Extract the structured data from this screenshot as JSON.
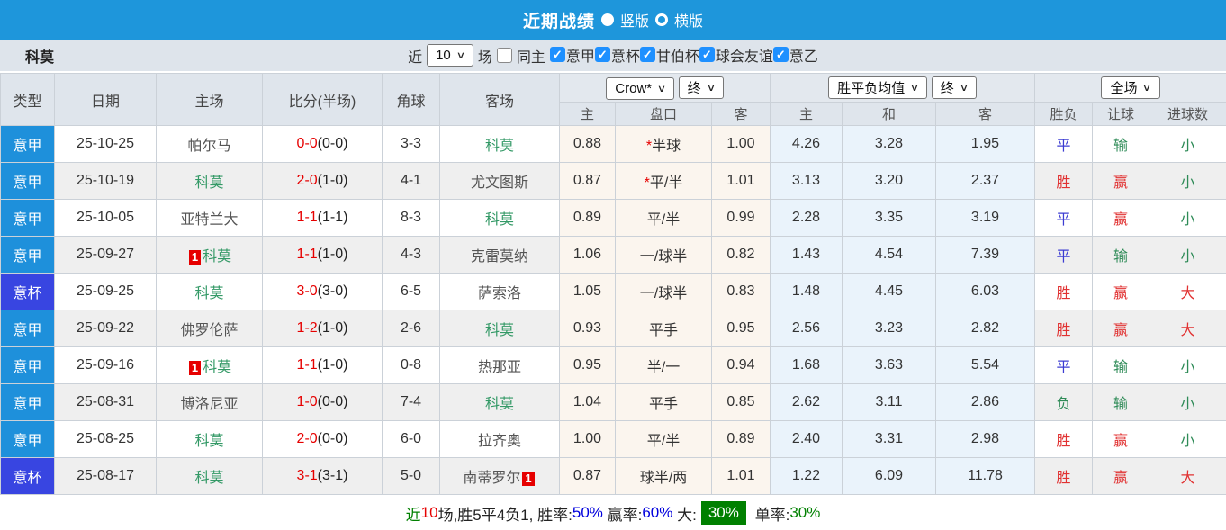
{
  "colors": {
    "bar_blue": "#1E96DB",
    "serie_a": "#1E90DB",
    "cup": "#3845E1",
    "red": "#E13232",
    "blue": "#3C3CD2",
    "green": "#2E8B57",
    "team_green": "#339966",
    "team_dark": "#555555",
    "score_red": "#E60000",
    "summary_green_bg": "#008000"
  },
  "title_bar": {
    "title": "近期战绩",
    "radio_vertical_label": "竖版",
    "radio_horizontal_label": "横版",
    "selected": "竖版"
  },
  "filter_bar": {
    "team": "科莫",
    "near_label": "近",
    "near_value": "10",
    "games_label": "场",
    "same_home_label": "同主",
    "same_home_checked": false,
    "leagues": [
      "意甲",
      "意杯",
      "甘伯杯",
      "球会友谊",
      "意乙"
    ]
  },
  "table": {
    "static_headers": [
      "类型",
      "日期",
      "主场",
      "比分(半场)",
      "角球",
      "客场"
    ],
    "dropdowns": {
      "bookmaker": "Crow*",
      "bookmaker_state": "终",
      "avg": "胜平负均值",
      "avg_state": "终",
      "scope": "全场"
    },
    "sub_headers": [
      "主",
      "盘口",
      "客",
      "主",
      "和",
      "客",
      "胜负",
      "让球",
      "进球数"
    ],
    "rows": [
      {
        "league": "意甲",
        "league_key": "serie_a",
        "date": "25-10-25",
        "home": "帕尔马",
        "home_green": false,
        "home_red": false,
        "score": "0-0",
        "half": "(0-0)",
        "corner": "3-3",
        "away": "科莫",
        "away_green": true,
        "away_red": false,
        "h_home": "0.88",
        "h_star": true,
        "handicap": "半球",
        "h_away": "1.00",
        "avg_win": "4.26",
        "avg_draw": "3.28",
        "avg_lose": "1.95",
        "result": "平",
        "result_c": "blue",
        "spread": "输",
        "spread_c": "green",
        "goals": "小",
        "goals_c": "green"
      },
      {
        "league": "意甲",
        "league_key": "serie_a",
        "date": "25-10-19",
        "home": "科莫",
        "home_green": true,
        "home_red": false,
        "score": "2-0",
        "half": "(1-0)",
        "corner": "4-1",
        "away": "尤文图斯",
        "away_green": false,
        "away_red": false,
        "h_home": "0.87",
        "h_star": true,
        "handicap": "平/半",
        "h_away": "1.01",
        "avg_win": "3.13",
        "avg_draw": "3.20",
        "avg_lose": "2.37",
        "result": "胜",
        "result_c": "red",
        "spread": "赢",
        "spread_c": "red",
        "goals": "小",
        "goals_c": "green"
      },
      {
        "league": "意甲",
        "league_key": "serie_a",
        "date": "25-10-05",
        "home": "亚特兰大",
        "home_green": false,
        "home_red": false,
        "score": "1-1",
        "half": "(1-1)",
        "corner": "8-3",
        "away": "科莫",
        "away_green": true,
        "away_red": false,
        "h_home": "0.89",
        "h_star": false,
        "handicap": "平/半",
        "h_away": "0.99",
        "avg_win": "2.28",
        "avg_draw": "3.35",
        "avg_lose": "3.19",
        "result": "平",
        "result_c": "blue",
        "spread": "赢",
        "spread_c": "red",
        "goals": "小",
        "goals_c": "green"
      },
      {
        "league": "意甲",
        "league_key": "serie_a",
        "date": "25-09-27",
        "home": "科莫",
        "home_green": true,
        "home_red": true,
        "score": "1-1",
        "half": "(1-0)",
        "corner": "4-3",
        "away": "克雷莫纳",
        "away_green": false,
        "away_red": false,
        "h_home": "1.06",
        "h_star": false,
        "handicap": "一/球半",
        "h_away": "0.82",
        "avg_win": "1.43",
        "avg_draw": "4.54",
        "avg_lose": "7.39",
        "result": "平",
        "result_c": "blue",
        "spread": "输",
        "spread_c": "green",
        "goals": "小",
        "goals_c": "green"
      },
      {
        "league": "意杯",
        "league_key": "cup",
        "date": "25-09-25",
        "home": "科莫",
        "home_green": true,
        "home_red": false,
        "score": "3-0",
        "half": "(3-0)",
        "corner": "6-5",
        "away": "萨索洛",
        "away_green": false,
        "away_red": false,
        "h_home": "1.05",
        "h_star": false,
        "handicap": "一/球半",
        "h_away": "0.83",
        "avg_win": "1.48",
        "avg_draw": "4.45",
        "avg_lose": "6.03",
        "result": "胜",
        "result_c": "red",
        "spread": "赢",
        "spread_c": "red",
        "goals": "大",
        "goals_c": "red"
      },
      {
        "league": "意甲",
        "league_key": "serie_a",
        "date": "25-09-22",
        "home": "佛罗伦萨",
        "home_green": false,
        "home_red": false,
        "score": "1-2",
        "half": "(1-0)",
        "corner": "2-6",
        "away": "科莫",
        "away_green": true,
        "away_red": false,
        "h_home": "0.93",
        "h_star": false,
        "handicap": "平手",
        "h_away": "0.95",
        "avg_win": "2.56",
        "avg_draw": "3.23",
        "avg_lose": "2.82",
        "result": "胜",
        "result_c": "red",
        "spread": "赢",
        "spread_c": "red",
        "goals": "大",
        "goals_c": "red"
      },
      {
        "league": "意甲",
        "league_key": "serie_a",
        "date": "25-09-16",
        "home": "科莫",
        "home_green": true,
        "home_red": true,
        "score": "1-1",
        "half": "(1-0)",
        "corner": "0-8",
        "away": "热那亚",
        "away_green": false,
        "away_red": false,
        "h_home": "0.95",
        "h_star": false,
        "handicap": "半/一",
        "h_away": "0.94",
        "avg_win": "1.68",
        "avg_draw": "3.63",
        "avg_lose": "5.54",
        "result": "平",
        "result_c": "blue",
        "spread": "输",
        "spread_c": "green",
        "goals": "小",
        "goals_c": "green"
      },
      {
        "league": "意甲",
        "league_key": "serie_a",
        "date": "25-08-31",
        "home": "博洛尼亚",
        "home_green": false,
        "home_red": false,
        "score": "1-0",
        "half": "(0-0)",
        "corner": "7-4",
        "away": "科莫",
        "away_green": true,
        "away_red": false,
        "h_home": "1.04",
        "h_star": false,
        "handicap": "平手",
        "h_away": "0.85",
        "avg_win": "2.62",
        "avg_draw": "3.11",
        "avg_lose": "2.86",
        "result": "负",
        "result_c": "green",
        "spread": "输",
        "spread_c": "green",
        "goals": "小",
        "goals_c": "green"
      },
      {
        "league": "意甲",
        "league_key": "serie_a",
        "date": "25-08-25",
        "home": "科莫",
        "home_green": true,
        "home_red": false,
        "score": "2-0",
        "half": "(0-0)",
        "corner": "6-0",
        "away": "拉齐奥",
        "away_green": false,
        "away_red": false,
        "h_home": "1.00",
        "h_star": false,
        "handicap": "平/半",
        "h_away": "0.89",
        "avg_win": "2.40",
        "avg_draw": "3.31",
        "avg_lose": "2.98",
        "result": "胜",
        "result_c": "red",
        "spread": "赢",
        "spread_c": "red",
        "goals": "小",
        "goals_c": "green"
      },
      {
        "league": "意杯",
        "league_key": "cup",
        "date": "25-08-17",
        "home": "科莫",
        "home_green": true,
        "home_red": false,
        "score": "3-1",
        "half": "(3-1)",
        "corner": "5-0",
        "away": "南蒂罗尔",
        "away_green": false,
        "away_red": true,
        "h_home": "0.87",
        "h_star": false,
        "handicap": "球半/两",
        "h_away": "1.01",
        "avg_win": "1.22",
        "avg_draw": "6.09",
        "avg_lose": "11.78",
        "result": "胜",
        "result_c": "red",
        "spread": "赢",
        "spread_c": "red",
        "goals": "大",
        "goals_c": "red"
      }
    ]
  },
  "summary": {
    "segments": [
      {
        "text": "近",
        "color": "#008000"
      },
      {
        "text": "10",
        "color": "#E60000"
      },
      {
        "text": "场,胜5平4负1, ",
        "color": "#222222"
      },
      {
        "text": "胜率:",
        "color": "#222222"
      },
      {
        "text": "50%",
        "color": "#0000DD"
      },
      {
        "text": " 赢率:",
        "color": "#222222"
      },
      {
        "text": "60%",
        "color": "#0000DD"
      },
      {
        "text": " 大:",
        "color": "#222222"
      },
      {
        "text": "30%",
        "color": "#FFFFFF",
        "bg": "#008000"
      },
      {
        "text": " 单率:",
        "color": "#222222"
      },
      {
        "text": "30%",
        "color": "#008000"
      }
    ]
  }
}
